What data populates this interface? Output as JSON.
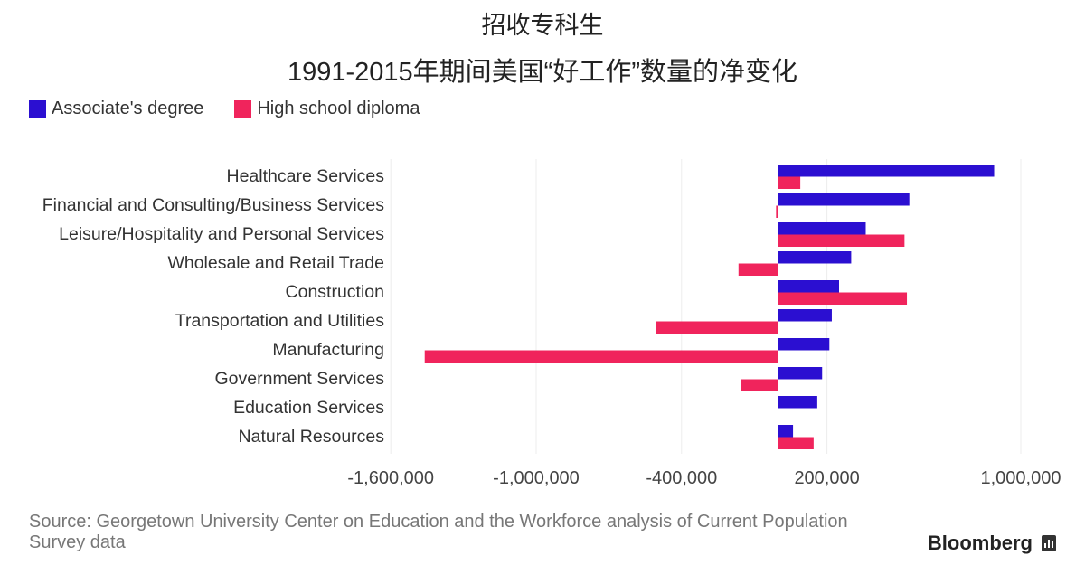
{
  "chart_data": {
    "type": "bar",
    "orientation": "horizontal",
    "title": "招收专科生",
    "subtitle": "1991-2015年期间美国“好工作”数量的净变化",
    "categories": [
      "Healthcare Services",
      "Financial and Consulting/Business Services",
      "Leisure/Hospitality and Personal Services",
      "Wholesale and Retail Trade",
      "Construction",
      "Transportation and Utilities",
      "Manufacturing",
      "Government Services",
      "Education Services",
      "Natural Resources"
    ],
    "series": [
      {
        "name": "Associate's degree",
        "color": "#2b0fd1",
        "values": [
          890000,
          540000,
          360000,
          300000,
          250000,
          220000,
          210000,
          180000,
          160000,
          60000
        ]
      },
      {
        "name": "High school diploma",
        "color": "#f0245c",
        "values": [
          90000,
          -10000,
          520000,
          -165000,
          530000,
          -505000,
          -1460000,
          -155000,
          0,
          145000
        ]
      }
    ],
    "xlim": [
      -1600000,
      1000000
    ],
    "x_ticks": [
      -1600000,
      -1000000,
      -400000,
      200000,
      1000000
    ],
    "x_tick_labels": [
      "-1,600,000",
      "-1,000,000",
      "-400,000",
      "200,000",
      "1,000,000"
    ],
    "grid": true,
    "legend_position": "top-left"
  },
  "source_text": "Source: Georgetown University Center on Education and the Workforce analysis of Current Population Survey data",
  "brand": "Bloomberg",
  "colors": {
    "associate": "#2b0fd1",
    "highschool": "#f0245c",
    "grid": "#ececec"
  }
}
